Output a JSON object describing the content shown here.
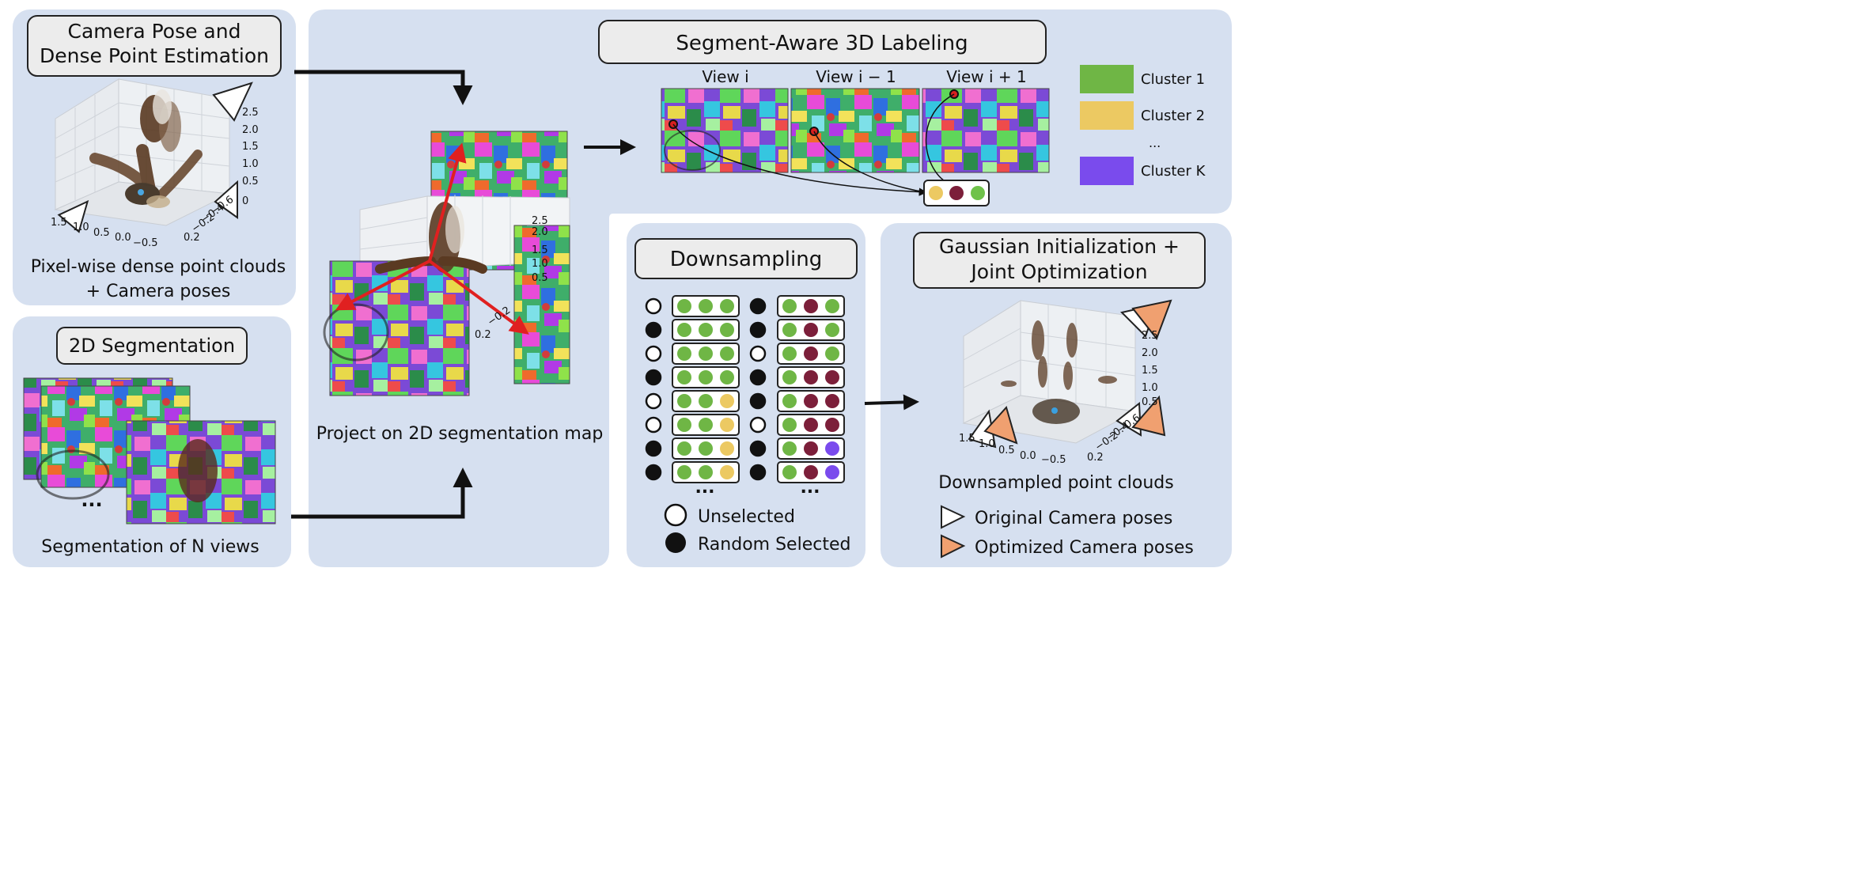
{
  "panels": {
    "camera_pose": {
      "title_lines": [
        "Camera Pose and",
        "Dense Point Estimation"
      ],
      "caption_lines": [
        "Pixel-wise dense point clouds",
        "+ Camera poses"
      ],
      "z_ticks": [
        "2.5",
        "2.0",
        "1.5",
        "1.0",
        "0.5",
        "0"
      ],
      "x_ticks": [
        "1.5",
        "1.0",
        "0.5",
        "0.0",
        "−0.5"
      ],
      "y_ticks": [
        "0.2",
        "−0.2",
        "−0.4",
        "−0.6"
      ]
    },
    "segmentation_2d": {
      "title": "2D Segmentation",
      "ellipsis": "...",
      "caption": "Segmentation of N views"
    },
    "projection": {
      "caption": "Project on 2D segmentation map",
      "z_ticks": [
        "2.5",
        "2.0",
        "1.5",
        "1.0",
        "0.5"
      ],
      "y_ticks": [
        "0.2",
        "−0.2"
      ]
    },
    "labeling": {
      "title": "Segment-Aware 3D Labeling",
      "views": [
        "View i",
        "View i − 1",
        "View i + 1"
      ],
      "legend": [
        {
          "label": "Cluster 1",
          "color": "#6fb645"
        },
        {
          "label": "Cluster 2",
          "color": "#ecc962"
        },
        {
          "label": "...",
          "color": ""
        },
        {
          "label": "Cluster K",
          "color": "#7a4bed"
        }
      ],
      "cluster_dots": [
        "#ecc962",
        "#7c1f3a",
        "#6fc24a"
      ]
    },
    "downsampling": {
      "title": "Downsampling",
      "ellipsis_left": "...",
      "ellipsis_right": "...",
      "legend_unselected": "Unselected",
      "legend_selected": "Random Selected",
      "left_selectors": [
        "open",
        "filled",
        "open",
        "filled",
        "open",
        "open",
        "filled",
        "filled"
      ],
      "left_rows": [
        [
          "g",
          "g",
          "g"
        ],
        [
          "g",
          "g",
          "g"
        ],
        [
          "g",
          "g",
          "g"
        ],
        [
          "g",
          "g",
          "g"
        ],
        [
          "g",
          "g",
          "y"
        ],
        [
          "g",
          "g",
          "y"
        ],
        [
          "g",
          "g",
          "y"
        ],
        [
          "g",
          "g",
          "y"
        ]
      ],
      "right_selectors": [
        "filled",
        "filled",
        "open",
        "filled",
        "filled",
        "open",
        "filled",
        "filled"
      ],
      "right_rows": [
        [
          "g",
          "m",
          "g"
        ],
        [
          "g",
          "m",
          "g"
        ],
        [
          "g",
          "m",
          "g"
        ],
        [
          "g",
          "m",
          "m"
        ],
        [
          "g",
          "m",
          "m"
        ],
        [
          "g",
          "m",
          "m"
        ],
        [
          "g",
          "m",
          "p"
        ],
        [
          "g",
          "m",
          "p"
        ]
      ],
      "colors": {
        "g": "#6fb645",
        "y": "#ecc962",
        "m": "#7c1f3a",
        "p": "#7a4bed"
      }
    },
    "gaussian": {
      "title_lines": [
        "Gaussian Initialization +",
        "Joint Optimization"
      ],
      "caption": "Downsampled point clouds",
      "legend_original": "Original Camera poses",
      "legend_optimized": "Optimized Camera poses",
      "z_ticks": [
        "2.5",
        "2.0",
        "1.5",
        "1.0",
        "0.5"
      ],
      "x_ticks": [
        "1.5",
        "1.0",
        "0.5",
        "0.0",
        "−0.5"
      ],
      "y_ticks": [
        "0.2",
        "−0.2",
        "−0.4",
        "−0.6"
      ]
    }
  },
  "colors": {
    "panel_bg": "#d6e0f0",
    "title_box_bg": "#ececec",
    "optimized_pose": "#f0a070",
    "arrow": "#111111",
    "axis_red": "#e02020"
  }
}
